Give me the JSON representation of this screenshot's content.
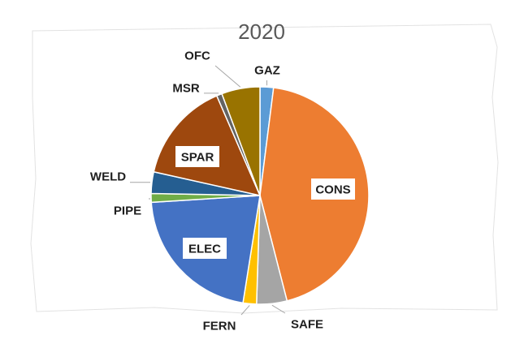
{
  "chart_data": {
    "type": "pie",
    "title": "2020",
    "slices": [
      {
        "label": "GAZ",
        "value": 2.0,
        "color": "#5B9BD5"
      },
      {
        "label": "CONS",
        "value": 44.0,
        "color": "#ED7D31"
      },
      {
        "label": "SAFE",
        "value": 4.5,
        "color": "#A5A5A5"
      },
      {
        "label": "FERN",
        "value": 2.0,
        "color": "#FFC000"
      },
      {
        "label": "ELEC",
        "value": 21.5,
        "color": "#4472C4"
      },
      {
        "label": "PIPE",
        "value": 1.3,
        "color": "#70AD47"
      },
      {
        "label": "WELD",
        "value": 3.2,
        "color": "#255E91"
      },
      {
        "label": "SPAR",
        "value": 15.0,
        "color": "#9E480E"
      },
      {
        "label": "MSR",
        "value": 0.8,
        "color": "#636363"
      },
      {
        "label": "OFC",
        "value": 5.7,
        "color": "#997300"
      }
    ],
    "legend": "none"
  }
}
